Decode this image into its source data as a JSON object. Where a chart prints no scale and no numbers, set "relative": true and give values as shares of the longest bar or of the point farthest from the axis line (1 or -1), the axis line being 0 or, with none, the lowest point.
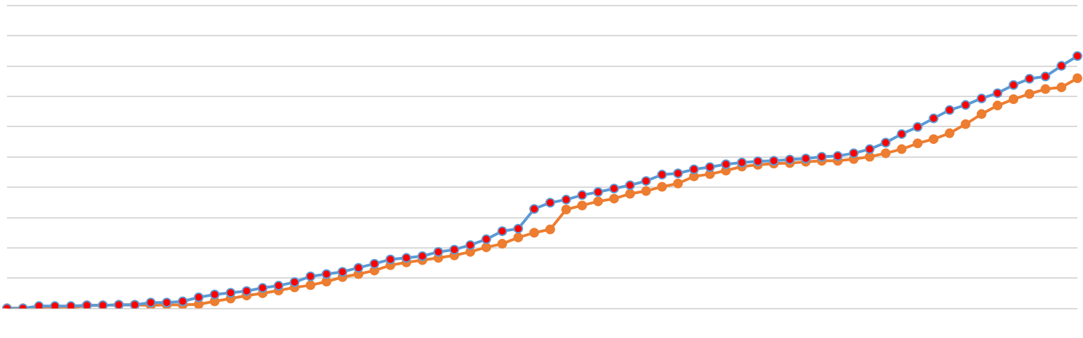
{
  "chart_data": {
    "type": "line",
    "relative": true,
    "grid": "y",
    "marker": "circle",
    "line_style": "solid",
    "legend": false,
    "categories": [
      null,
      null,
      null,
      null,
      null,
      null,
      null,
      null,
      null,
      null,
      null,
      null,
      null,
      null,
      null,
      null,
      null,
      null,
      null,
      null,
      null,
      null,
      null,
      null,
      null,
      null,
      null,
      null,
      null,
      null,
      null,
      null,
      null,
      null,
      null,
      null,
      null,
      null,
      null,
      null,
      null,
      null,
      null,
      null,
      null,
      null,
      null,
      null,
      null,
      null,
      null,
      null,
      null,
      null,
      null,
      null,
      null,
      null,
      null,
      null,
      null,
      null,
      null,
      null,
      null,
      null,
      null,
      null
    ],
    "series": [
      {
        "color": "#5b9bd5",
        "values": [
          0,
          0,
          0.009,
          0.009,
          0.009,
          0.012,
          0.012,
          0.014,
          0.014,
          0.023,
          0.023,
          0.028,
          0.044,
          0.055,
          0.062,
          0.069,
          0.081,
          0.09,
          0.104,
          0.127,
          0.136,
          0.145,
          0.161,
          0.177,
          0.194,
          0.2,
          0.207,
          0.224,
          0.233,
          0.251,
          0.274,
          0.306,
          0.316,
          0.394,
          0.419,
          0.431,
          0.449,
          0.461,
          0.475,
          0.488,
          0.505,
          0.53,
          0.535,
          0.551,
          0.56,
          0.571,
          0.578,
          0.583,
          0.585,
          0.59,
          0.594,
          0.601,
          0.604,
          0.615,
          0.631,
          0.657,
          0.691,
          0.719,
          0.753,
          0.786,
          0.806,
          0.832,
          0.853,
          0.885,
          0.91,
          0.919,
          0.961,
          1.0
        ]
      },
      {
        "color": "#ed7d31",
        "values": [
          0,
          0,
          0,
          0,
          0,
          0.012,
          0.012,
          0.014,
          0.014,
          0.012,
          0.014,
          0.014,
          0.016,
          0.028,
          0.039,
          0.051,
          0.06,
          0.071,
          0.083,
          0.092,
          0.106,
          0.124,
          0.136,
          0.15,
          0.171,
          0.182,
          0.191,
          0.2,
          0.21,
          0.224,
          0.242,
          0.256,
          0.281,
          0.3,
          0.313,
          0.392,
          0.408,
          0.424,
          0.435,
          0.454,
          0.465,
          0.482,
          0.495,
          0.523,
          0.532,
          0.546,
          0.562,
          0.569,
          0.574,
          0.576,
          0.581,
          0.585,
          0.585,
          0.592,
          0.601,
          0.615,
          0.631,
          0.654,
          0.671,
          0.694,
          0.73,
          0.77,
          0.804,
          0.829,
          0.85,
          0.869,
          0.876,
          0.912
        ]
      }
    ]
  }
}
